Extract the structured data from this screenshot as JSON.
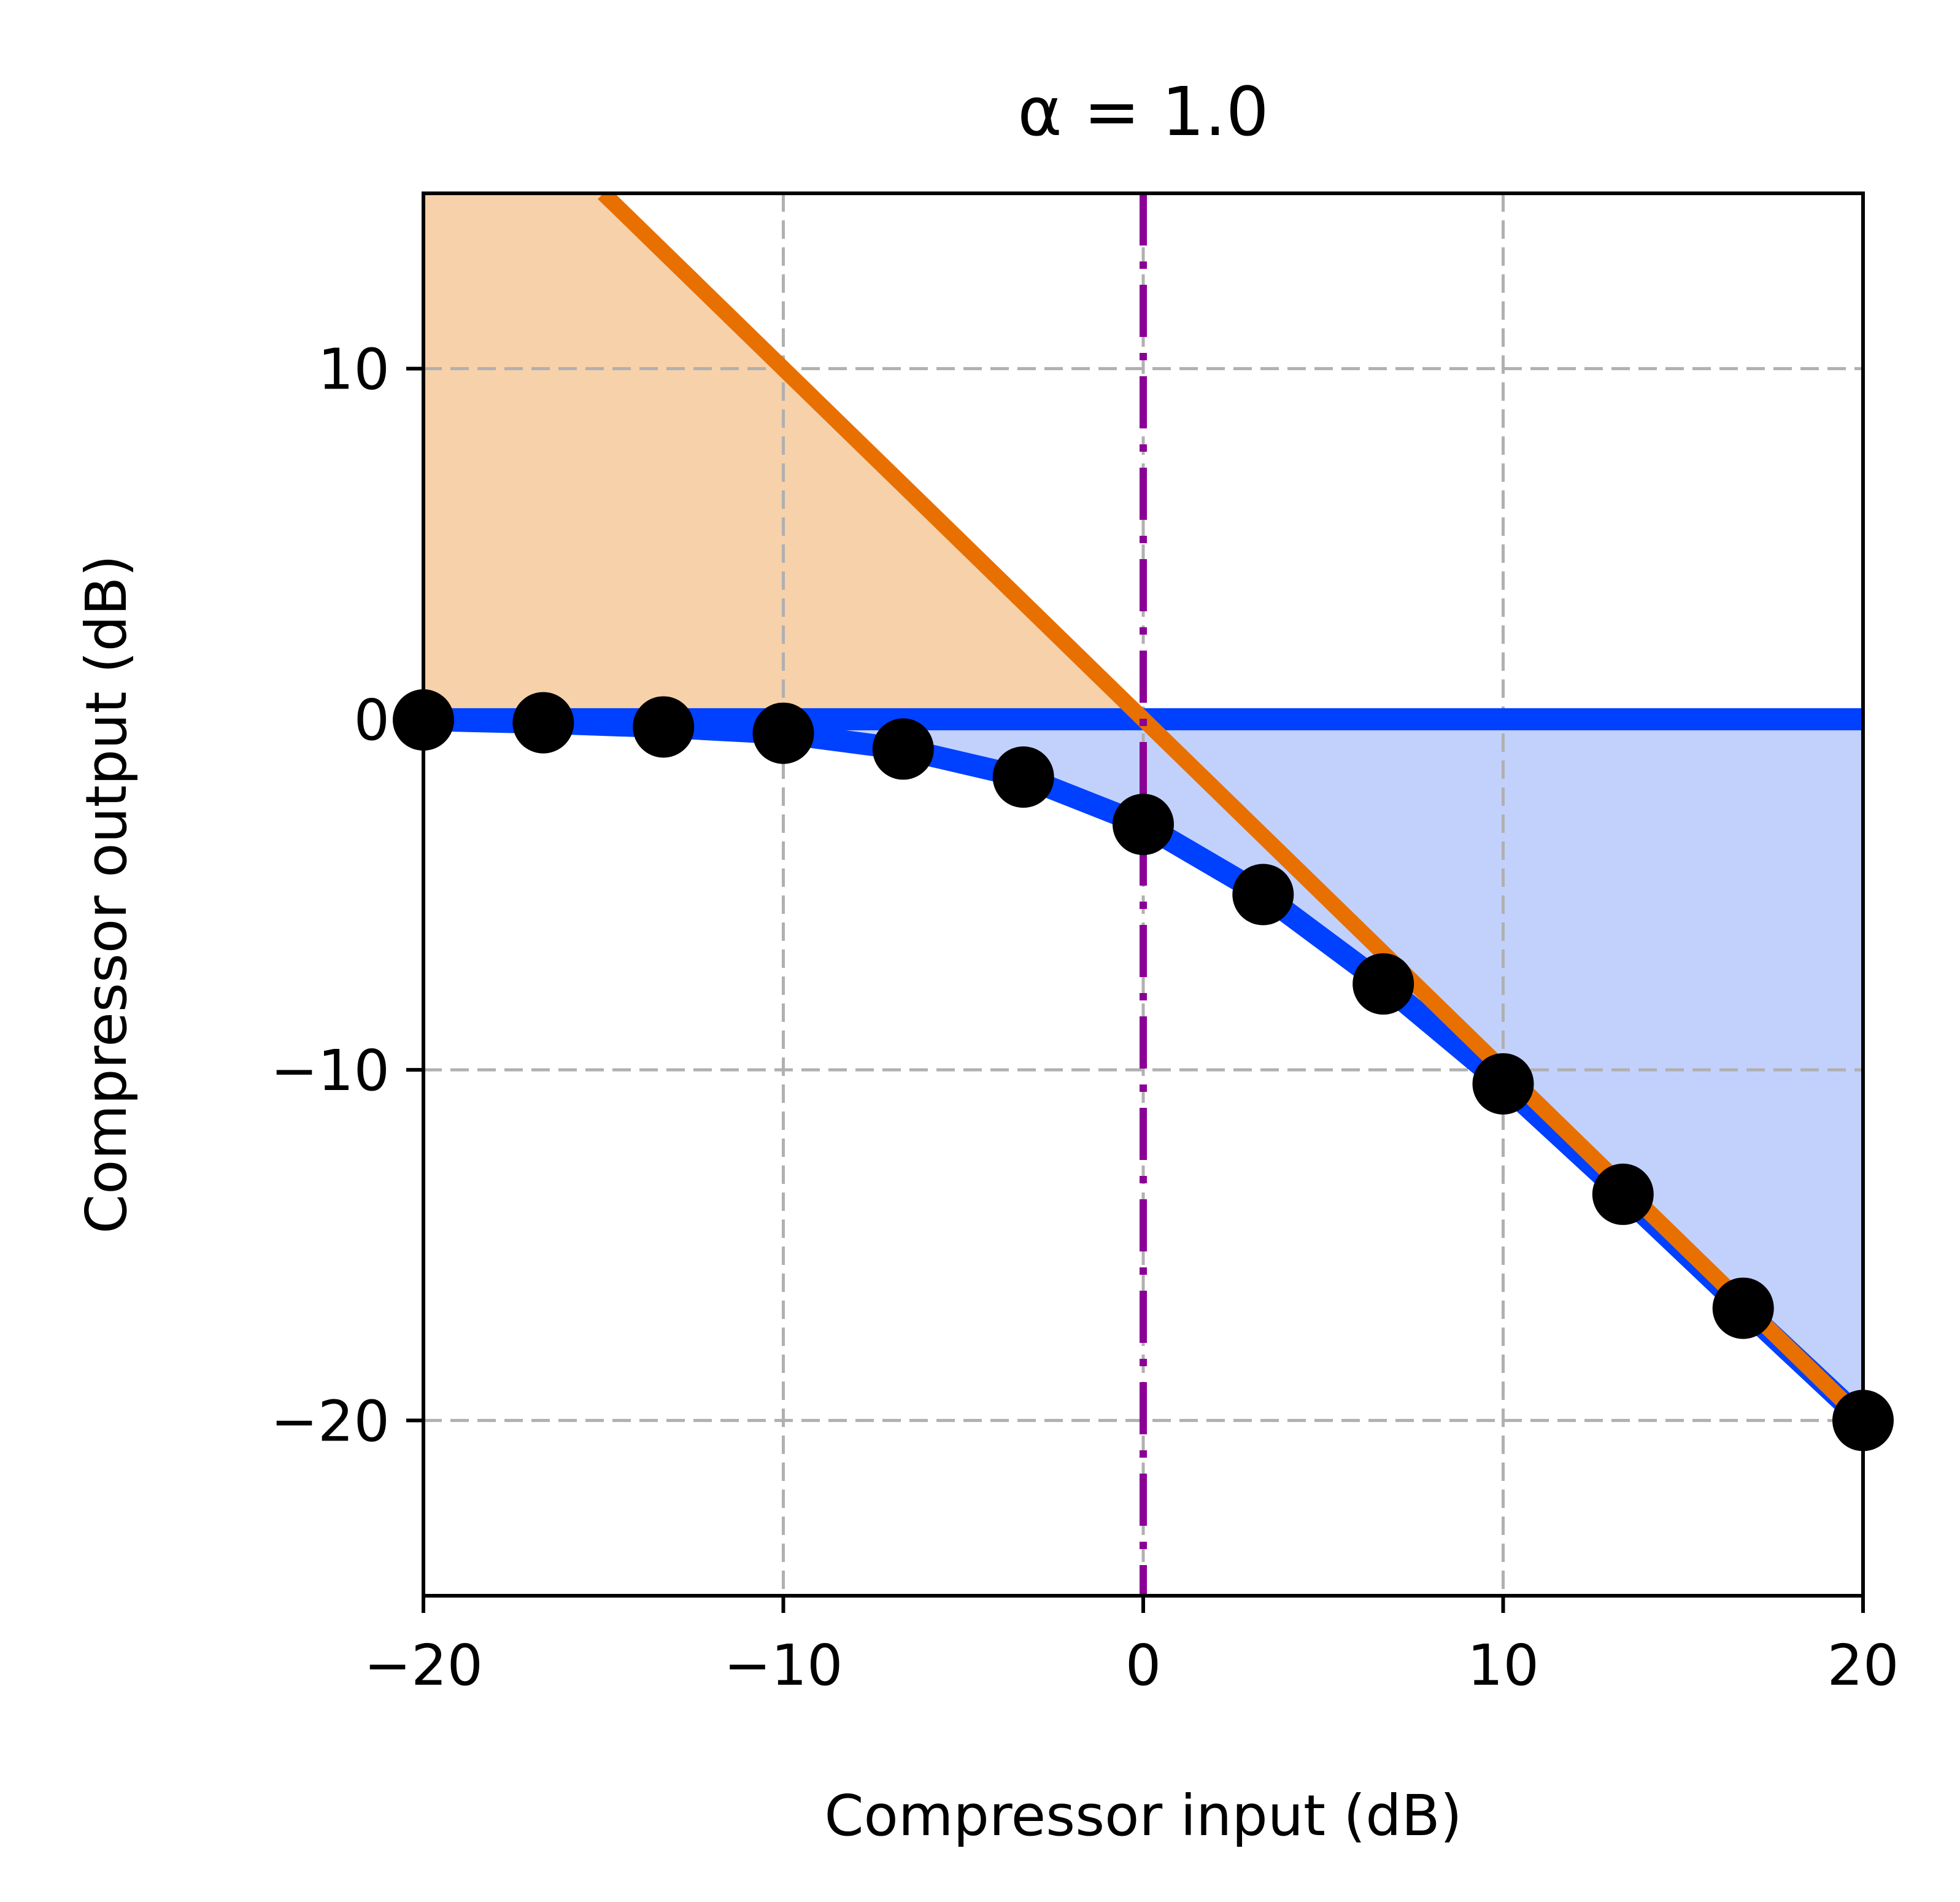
{
  "chart_data": {
    "type": "line",
    "title": "α = 1.0",
    "xlabel": "Compressor input (dB)",
    "ylabel": "Compressor output (dB)",
    "xlim": [
      -20,
      20
    ],
    "ylim": [
      -25,
      15
    ],
    "x_ticks": [
      -20,
      -10,
      0,
      10,
      20
    ],
    "x_tick_labels": [
      "−20",
      "−10",
      "0",
      "10",
      "20"
    ],
    "y_ticks": [
      -20,
      -10,
      0,
      10
    ],
    "y_tick_labels": [
      "−20",
      "−10",
      "0",
      "10"
    ],
    "grid": true,
    "threshold_x": 0,
    "colors": {
      "hard_knee": "#0040ff",
      "soft_knee": "#0040ff",
      "markers": "#000000",
      "identity": "#e87000",
      "threshold": "#8b0096",
      "fill_upper": "#f7d1aa",
      "fill_lower": "#bfcffc",
      "grid": "#b0b0b0"
    },
    "series": [
      {
        "kind": "hard_knee",
        "x": [
          -20,
          20
        ],
        "y": [
          0,
          0
        ]
      },
      {
        "kind": "identity",
        "x": [
          -15,
          20
        ],
        "y": [
          15,
          -20
        ]
      },
      {
        "kind": "soft_knee",
        "x": [
          -20,
          -16.67,
          -13.33,
          -10,
          -6.67,
          -3.33,
          0,
          3.33,
          6.67,
          10,
          13.33,
          16.67,
          20
        ],
        "y": [
          -0.02,
          -0.1,
          -0.22,
          -0.4,
          -0.85,
          -1.65,
          -3.0,
          -5.0,
          -7.55,
          -10.4,
          -13.55,
          -16.8,
          -20.0
        ]
      }
    ]
  }
}
